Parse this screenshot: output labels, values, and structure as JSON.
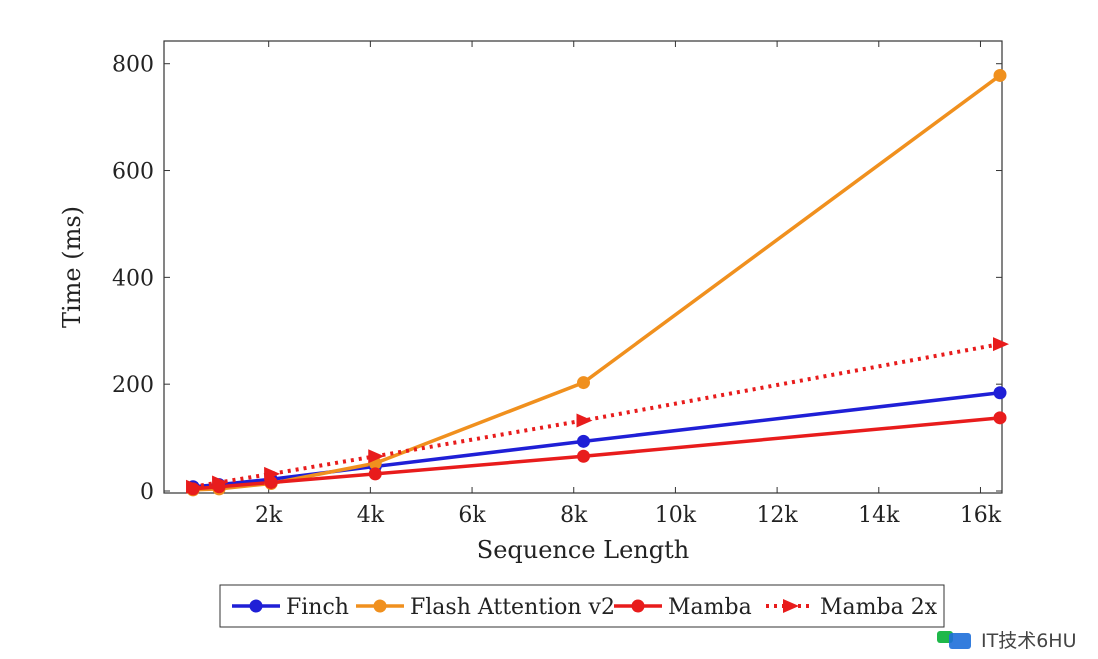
{
  "chart_data": {
    "type": "line",
    "title": "",
    "xlabel": "Sequence Length",
    "ylabel": "Time (ms)",
    "xlim": [
      0,
      16384
    ],
    "ylim": [
      0,
      850
    ],
    "xticks": [
      2000,
      4000,
      6000,
      8000,
      10000,
      12000,
      14000,
      16000
    ],
    "xtick_labels": [
      "2k",
      "4k",
      "6k",
      "8k",
      "10k",
      "12k",
      "14k",
      "16k"
    ],
    "yticks": [
      0,
      200,
      400,
      600,
      800
    ],
    "ytick_labels": [
      "0",
      "200",
      "400",
      "600",
      "800"
    ],
    "x": [
      512,
      1024,
      2048,
      4096,
      8192,
      16384
    ],
    "legend_position": "bottom-outside",
    "series": [
      {
        "name": "Finch",
        "color": "#1f1fd6",
        "style": "solid",
        "marker": "circle",
        "values": [
          8,
          12,
          22,
          46,
          93,
          184
        ]
      },
      {
        "name": "Flash Attention v2",
        "color": "#f0901e",
        "style": "solid",
        "marker": "circle",
        "values": [
          2,
          4,
          14,
          52,
          203,
          778
        ]
      },
      {
        "name": "Mamba",
        "color": "#e81c1c",
        "style": "solid",
        "marker": "circle",
        "values": [
          4,
          8,
          16,
          32,
          65,
          137
        ]
      },
      {
        "name": "Mamba 2x",
        "color": "#e81c1c",
        "style": "dotted",
        "marker": "triangle",
        "values": [
          8,
          16,
          32,
          65,
          132,
          275
        ]
      }
    ]
  },
  "watermark": {
    "text": "IT技术6HU"
  }
}
